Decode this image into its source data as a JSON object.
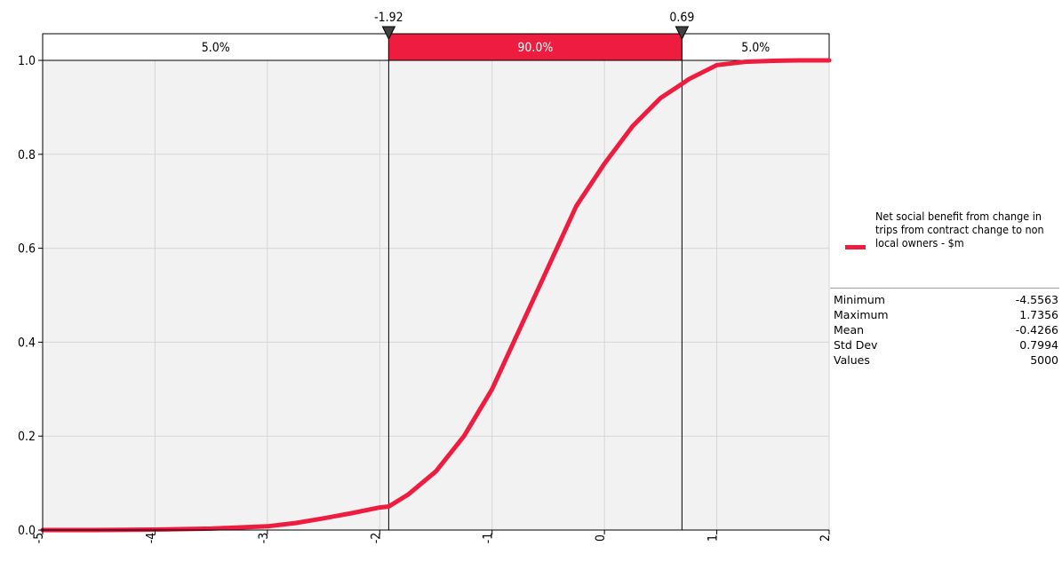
{
  "chart_data": {
    "type": "line",
    "title": "",
    "xlabel": "",
    "ylabel": "",
    "xlim": [
      -5,
      2
    ],
    "ylim": [
      0,
      1
    ],
    "x_ticks": [
      "-5",
      "-4",
      "-3",
      "-2",
      "-1",
      "0",
      "1",
      "2"
    ],
    "y_ticks": [
      "0.0",
      "0.2",
      "0.4",
      "0.6",
      "0.8",
      "1.0"
    ],
    "grid": true,
    "legend_position": "right",
    "series": [
      {
        "name": "Net social benefit from change in trips from contract change to non local owners - $m",
        "color": "#ee1c3e",
        "x": [
          -5.0,
          -4.5563,
          -4.0,
          -3.5,
          -3.0,
          -2.75,
          -2.5,
          -2.25,
          -2.0,
          -1.92,
          -1.75,
          -1.5,
          -1.25,
          -1.0,
          -0.75,
          -0.5,
          -0.25,
          0.0,
          0.25,
          0.5,
          0.69,
          0.75,
          1.0,
          1.25,
          1.5,
          1.7356,
          2.0
        ],
        "y": [
          0.0,
          0.0,
          0.001,
          0.003,
          0.008,
          0.015,
          0.025,
          0.036,
          0.048,
          0.05,
          0.075,
          0.125,
          0.2,
          0.3,
          0.43,
          0.56,
          0.69,
          0.78,
          0.86,
          0.92,
          0.95,
          0.96,
          0.99,
          0.997,
          0.999,
          1.0,
          1.0
        ]
      }
    ],
    "delimiters": {
      "left": {
        "value": "-1.92",
        "x": -1.92
      },
      "right": {
        "value": "0.69",
        "x": 0.69
      },
      "bands": [
        {
          "label": "5.0%",
          "highlight": false
        },
        {
          "label": "90.0%",
          "highlight": true
        },
        {
          "label": "5.0%",
          "highlight": false
        }
      ],
      "highlight_color": "#ee1c3e"
    },
    "statistics": [
      {
        "label": "Minimum",
        "value": "-4.5563"
      },
      {
        "label": "Maximum",
        "value": "1.7356"
      },
      {
        "label": "Mean",
        "value": "-0.4266"
      },
      {
        "label": "Std Dev",
        "value": "0.7994"
      },
      {
        "label": "Values",
        "value": "5000"
      }
    ]
  }
}
